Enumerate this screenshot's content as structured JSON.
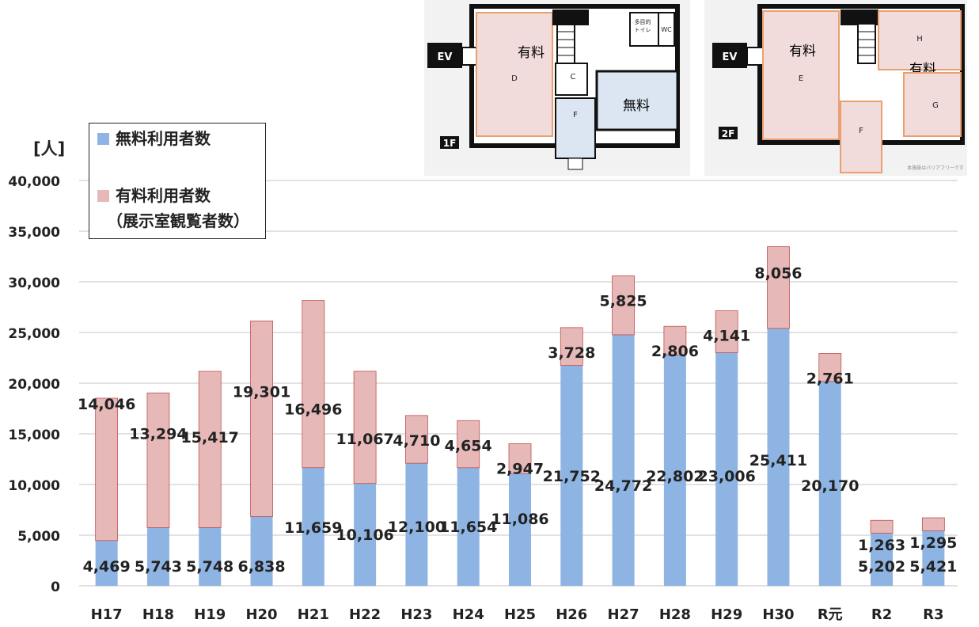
{
  "unit_label": "[人]",
  "legend": {
    "free_label": "無料利用者数",
    "paid_label_line1": "有料利用者数",
    "paid_label_line2": "（展示室観覧者数）"
  },
  "colors": {
    "free": "#8eb4e3",
    "paid": "#e6b9b8",
    "gridline": "#d9d9d9",
    "text": "#222222"
  },
  "floorplan_1f": {
    "floor_badge": "1F",
    "ev_label": "EV",
    "room_d": "D",
    "room_c": "C",
    "room_f": "F",
    "paid_label": "有料",
    "free_label": "無料",
    "toilet_label_line1": "多目的",
    "toilet_label_line2": "トイレ",
    "wc_label": "WC"
  },
  "floorplan_2f": {
    "floor_badge": "2F",
    "ev_label": "EV",
    "room_e": "E",
    "room_f": "F",
    "room_g": "G",
    "room_h": "H",
    "paid_label_1": "有料",
    "paid_label_2": "有料",
    "note": "本施設はバリアフリーです"
  },
  "chart_data": {
    "type": "bar",
    "stacked": true,
    "categories": [
      "H17",
      "H18",
      "H19",
      "H20",
      "H21",
      "H22",
      "H23",
      "H24",
      "H25",
      "H26",
      "H27",
      "H28",
      "H29",
      "H30",
      "R元",
      "R2",
      "R3"
    ],
    "series": [
      {
        "name": "無料利用者数",
        "values": [
          4469,
          5743,
          5748,
          6838,
          11659,
          10106,
          12100,
          11654,
          11086,
          21752,
          24772,
          22802,
          23006,
          25411,
          20170,
          5202,
          5421
        ]
      },
      {
        "name": "有料利用者数（展示室観覧者数）",
        "values": [
          14046,
          13294,
          15417,
          19301,
          16496,
          11067,
          4710,
          4654,
          2947,
          3728,
          5825,
          2806,
          4141,
          8056,
          2761,
          1263,
          1295
        ]
      }
    ],
    "free_labels": [
      "4,469",
      "5,743",
      "5,748",
      "6,838",
      "11,659",
      "10,106",
      "12,100",
      "11,654",
      "11,086",
      "21,752",
      "24,772",
      "22,802",
      "23,006",
      "25,411",
      "20,170",
      "5,202",
      "5,421"
    ],
    "paid_labels": [
      "14,046",
      "13,294",
      "15,417",
      "19,301",
      "16,496",
      "11,067",
      "4,710",
      "4,654",
      "2,947",
      "3,728",
      "5,825",
      "2,806",
      "4,141",
      "8,056",
      "2,761",
      "1,263",
      "1,295"
    ],
    "ylim": [
      0,
      40000
    ],
    "yticks": [
      0,
      5000,
      10000,
      15000,
      20000,
      25000,
      30000,
      35000,
      40000
    ],
    "ytick_labels": [
      "0",
      "5,000",
      "10,000",
      "15,000",
      "20,000",
      "25,000",
      "30,000",
      "35,000",
      "40,000"
    ],
    "grid": true,
    "legend_position": "top-left"
  }
}
